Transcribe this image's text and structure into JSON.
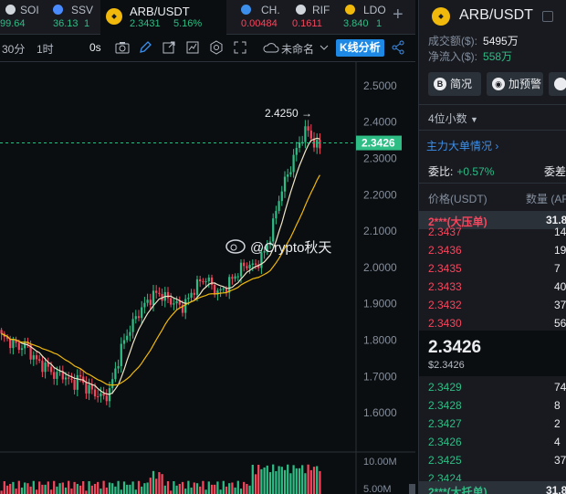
{
  "tabs": [
    {
      "name": "SOI",
      "price": "99.64",
      "change": "-",
      "color": "#d0d5dc",
      "price_color": "#2ebd85"
    },
    {
      "name": "SSV",
      "price": "36.13",
      "change": "1",
      "color": "#4a8cff",
      "price_color": "#2ebd85"
    },
    {
      "name": "ARB/USDT",
      "price": "2.3431",
      "change": "5.16%",
      "color": "#f0b90b",
      "price_color": "#2ebd85",
      "active": true
    },
    {
      "name": "CH.",
      "price": "0.00484",
      "change": "",
      "color": "#3c90eb",
      "price_color": "#f6465d"
    },
    {
      "name": "RIF",
      "price": "0.1611",
      "change": "",
      "color": "#d0d5dc",
      "price_color": "#f6465d"
    },
    {
      "name": "LDO",
      "price": "3.840",
      "change": "1",
      "color": "#f0b90b",
      "price_color": "#2ebd85"
    }
  ],
  "tab_add": "+",
  "toolbar": {
    "interval_30m": "30分",
    "interval_1h": "1时",
    "zero_s": "0s",
    "layout_name": "未命名",
    "kline_button": "K线分析"
  },
  "chart": {
    "price_labels": [
      "2.5000",
      "2.4000",
      "2.3000",
      "2.2000",
      "2.1000",
      "2.0000",
      "1.9000",
      "1.8000",
      "1.7000",
      "1.6000"
    ],
    "current_price": "2.3426",
    "high_marker": "2.4250 →",
    "volume_labels": [
      "10.00M",
      "5.00M"
    ],
    "watermark": "@Crypto秋天"
  },
  "chart_data": {
    "type": "candlestick",
    "ylim": [
      1.56,
      2.54
    ],
    "current": 2.3426,
    "high": 2.425,
    "close_series": [
      1.81,
      1.8,
      1.79,
      1.78,
      1.79,
      1.76,
      1.74,
      1.73,
      1.72,
      1.7,
      1.71,
      1.69,
      1.68,
      1.7,
      1.67,
      1.66,
      1.65,
      1.64,
      1.66,
      1.72,
      1.78,
      1.82,
      1.85,
      1.88,
      1.9,
      1.92,
      1.93,
      1.92,
      1.91,
      1.9,
      1.89,
      1.91,
      1.94,
      1.96,
      1.97,
      1.95,
      1.93,
      1.94,
      1.96,
      1.98,
      2.0,
      2.01,
      2.0,
      2.02,
      2.05,
      2.1,
      2.18,
      2.23,
      2.27,
      2.32,
      2.36,
      2.38,
      2.34,
      2.33
    ]
  },
  "panel": {
    "title": "ARB/USDT",
    "turnover_label": "成交额($):",
    "turnover_value": "5495万",
    "inflow_label": "净流入($):",
    "inflow_value": "558万",
    "btn_overview": "简况",
    "btn_alert": "加预警",
    "decimals": "4位小数",
    "big_orders_link": "主力大单情况",
    "ratio_label": "委比:",
    "ratio_value": "+0.57%",
    "ratio_label2": "委差",
    "col_price": "价格(USDT)",
    "col_qty": "数量 (AR",
    "big_sell": {
      "price": "2***(大压单)",
      "qty": "31.8"
    },
    "asks": [
      {
        "price": "2.3437",
        "qty": "14"
      },
      {
        "price": "2.3436",
        "qty": "19"
      },
      {
        "price": "2.3435",
        "qty": "7"
      },
      {
        "price": "2.3433",
        "qty": "40"
      },
      {
        "price": "2.3432",
        "qty": "37"
      },
      {
        "price": "2.3430",
        "qty": "56"
      }
    ],
    "last_price": "2.3426",
    "last_price_usd": "$2.3426",
    "bids": [
      {
        "price": "2.3429",
        "qty": "74"
      },
      {
        "price": "2.3428",
        "qty": "8"
      },
      {
        "price": "2.3427",
        "qty": "2"
      },
      {
        "price": "2.3426",
        "qty": "4"
      },
      {
        "price": "2.3425",
        "qty": "37"
      },
      {
        "price": "2.3424",
        "qty": ""
      }
    ],
    "big_buy": {
      "price": "2***(大托单)",
      "qty": "31.8"
    }
  }
}
